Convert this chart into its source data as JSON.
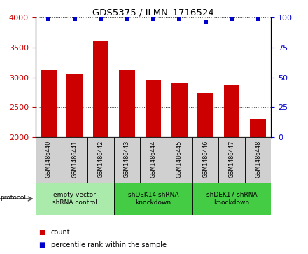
{
  "title": "GDS5375 / ILMN_1716524",
  "samples": [
    "GSM1486440",
    "GSM1486441",
    "GSM1486442",
    "GSM1486443",
    "GSM1486444",
    "GSM1486445",
    "GSM1486446",
    "GSM1486447",
    "GSM1486448"
  ],
  "counts": [
    3120,
    3060,
    3620,
    3130,
    2950,
    2900,
    2740,
    2880,
    2310
  ],
  "percentiles": [
    99,
    99,
    99,
    99,
    99,
    99,
    96,
    99,
    99
  ],
  "ylim_left": [
    2000,
    4000
  ],
  "ylim_right": [
    0,
    100
  ],
  "yticks_left": [
    2000,
    2500,
    3000,
    3500,
    4000
  ],
  "yticks_right": [
    0,
    25,
    50,
    75,
    100
  ],
  "bar_color": "#cc0000",
  "dot_color": "#0000cc",
  "groups": [
    {
      "label": "empty vector\nshRNA control",
      "start": 0,
      "end": 3,
      "color": "#90ee90"
    },
    {
      "label": "shDEK14 shRNA\nknockdown",
      "start": 3,
      "end": 6,
      "color": "#44dd44"
    },
    {
      "label": "shDEK17 shRNA\nknockdown",
      "start": 6,
      "end": 9,
      "color": "#44dd44"
    }
  ],
  "protocol_label": "protocol",
  "legend_count_label": "count",
  "legend_percentile_label": "percentile rank within the sample",
  "sample_bg_color": "#d0d0d0",
  "group1_color": "#aaeaaa",
  "group2_color": "#44cc44"
}
